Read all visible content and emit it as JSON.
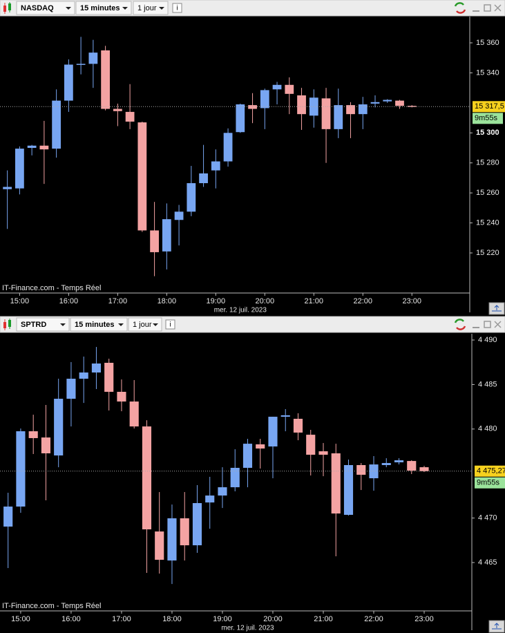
{
  "chart_data": [
    {
      "type": "candlestick",
      "symbol": "NASDAQ",
      "interval": "15 minutes",
      "range": "1 jour",
      "info": "i",
      "watermark": "IT-Finance.com - Temps Réel",
      "date_label": "mer. 12 juil. 2023",
      "last_price": {
        "value": 15317.5,
        "label": "15 317,5"
      },
      "timer": "9m55s",
      "up_color": "#78a6f2",
      "down_color": "#f4a3a3",
      "xlim": [
        14.6,
        24.18
      ],
      "ylim": [
        15193.3,
        15377.5
      ],
      "xticks": [
        {
          "value": 15,
          "label": "15:00"
        },
        {
          "value": 16,
          "label": "16:00"
        },
        {
          "value": 17,
          "label": "17:00"
        },
        {
          "value": 18,
          "label": "18:00"
        },
        {
          "value": 19,
          "label": "19:00"
        },
        {
          "value": 20,
          "label": "20:00"
        },
        {
          "value": 21,
          "label": "21:00"
        },
        {
          "value": 22,
          "label": "22:00"
        },
        {
          "value": 23,
          "label": "23:00"
        }
      ],
      "yticks": [
        {
          "value": 15220,
          "label": "15 220"
        },
        {
          "value": 15240,
          "label": "15 240"
        },
        {
          "value": 15260,
          "label": "15 260"
        },
        {
          "value": 15280,
          "label": "15 280"
        },
        {
          "value": 15300,
          "label": "15 300"
        },
        {
          "value": 15340,
          "label": "15 340"
        },
        {
          "value": 15360,
          "label": "15 360"
        }
      ],
      "x": [
        14.75,
        15,
        15.25,
        15.5,
        15.75,
        16,
        16.25,
        16.5,
        16.75,
        17,
        17.25,
        17.5,
        17.75,
        18,
        18.25,
        18.5,
        18.75,
        19,
        19.25,
        19.5,
        19.75,
        20,
        20.25,
        20.5,
        20.75,
        21,
        21.25,
        21.5,
        21.75,
        22,
        22.25,
        22.5,
        22.75,
        23
      ],
      "open": [
        15262.5,
        15263,
        15290,
        15291.5,
        15289.5,
        15321.5,
        15345.5,
        15346,
        15355,
        15316,
        15314,
        15307,
        15235,
        15221,
        15242,
        15247.5,
        15266.5,
        15275,
        15281,
        15300.5,
        15318.5,
        15316.5,
        15329,
        15332,
        15325,
        15311.5,
        15323,
        15302.5,
        15318.5,
        15312.5,
        15319.5,
        15321,
        15321.5,
        15318
      ],
      "high": [
        15275,
        15291,
        15292,
        15308,
        15329,
        15349,
        15364,
        15362,
        15358,
        15319.5,
        15332.5,
        15307.5,
        15254,
        15253,
        15252,
        15278,
        15292,
        15289,
        15303,
        15319.5,
        15326.5,
        15329.5,
        15334,
        15337,
        15330,
        15329,
        15330,
        15329.5,
        15320.5,
        15324,
        15325,
        15322.5,
        15322,
        15318.5
      ],
      "low": [
        15236,
        15259,
        15285,
        15266,
        15283.5,
        15314,
        15339,
        15330,
        15315,
        15304.5,
        15302.5,
        15234,
        15204.5,
        15209,
        15225,
        15244.5,
        15264,
        15263,
        15277.5,
        15300,
        15306.5,
        15302.5,
        15319,
        15312.5,
        15302,
        15303.5,
        15280,
        15296.5,
        15296.5,
        15302.5,
        15317,
        15320,
        15316,
        15317
      ],
      "close": [
        15264,
        15289.5,
        15291.5,
        15289,
        15321.5,
        15345.5,
        15346,
        15353.5,
        15316,
        15314.5,
        15307.5,
        15235,
        15220.5,
        15242.5,
        15247.5,
        15266.5,
        15273,
        15281,
        15300,
        15319,
        15316,
        15328.5,
        15332,
        15326,
        15312.5,
        15323.5,
        15302.5,
        15318.5,
        15312.5,
        15319,
        15320.5,
        15322,
        15318,
        15317.5
      ]
    },
    {
      "type": "candlestick",
      "symbol": "SPTRD",
      "interval": "15 minutes",
      "range": "1 jour",
      "info": "i",
      "watermark": "IT-Finance.com - Temps Réel",
      "date_label": "mer. 12 juil. 2023",
      "last_price": {
        "value": 4475.27,
        "label": "4 475,27"
      },
      "timer": "9m55s",
      "up_color": "#78a6f2",
      "down_color": "#f4a3a3",
      "xlim": [
        14.59,
        23.945
      ],
      "ylim": [
        4459.57,
        4490.7
      ],
      "xticks": [
        {
          "value": 15,
          "label": "15:00"
        },
        {
          "value": 16,
          "label": "16:00"
        },
        {
          "value": 17,
          "label": "17:00"
        },
        {
          "value": 18,
          "label": "18:00"
        },
        {
          "value": 19,
          "label": "19:00"
        },
        {
          "value": 20,
          "label": "20:00"
        },
        {
          "value": 21,
          "label": "21:00"
        },
        {
          "value": 22,
          "label": "22:00"
        },
        {
          "value": 23,
          "label": "23:00"
        }
      ],
      "yticks": [
        {
          "value": 4465,
          "label": "4 465"
        },
        {
          "value": 4470,
          "label": "4 470"
        },
        {
          "value": 4480,
          "label": "4 480"
        },
        {
          "value": 4485,
          "label": "4 485"
        },
        {
          "value": 4490,
          "label": "4 490"
        }
      ],
      "x": [
        14.75,
        15,
        15.25,
        15.5,
        15.75,
        16,
        16.25,
        16.5,
        16.75,
        17,
        17.25,
        17.5,
        17.75,
        18,
        18.25,
        18.5,
        18.75,
        19,
        19.25,
        19.5,
        19.75,
        20,
        20.25,
        20.5,
        20.75,
        21,
        21.25,
        21.5,
        21.75,
        22,
        22.25,
        22.5,
        22.75,
        23
      ],
      "open": [
        4469.04,
        4471.29,
        4479.75,
        4479.05,
        4477.03,
        4483.4,
        4485.65,
        4486.35,
        4487.44,
        4484.18,
        4483.09,
        4480.29,
        4468.49,
        4465.23,
        4469.97,
        4466.94,
        4471.75,
        4472.53,
        4473.46,
        4475.64,
        4478.28,
        4478.04,
        4481.38,
        4481.15,
        4479.36,
        4477.5,
        4477.27,
        4470.36,
        4475.95,
        4474.47,
        4475.95,
        4476.26,
        4476.41,
        4475.71
      ],
      "high": [
        4472.84,
        4480.06,
        4481.61,
        4482.7,
        4485.65,
        4487.52,
        4488.14,
        4489.22,
        4487.9,
        4485.57,
        4485.5,
        4480.99,
        4472.92,
        4471.52,
        4472.92,
        4473.7,
        4474.63,
        4475.71,
        4477.73,
        4478.9,
        4478.9,
        4481.38,
        4482.24,
        4481.77,
        4479.91,
        4478.43,
        4478.35,
        4476.57,
        4476.18,
        4476.96,
        4476.72,
        4476.72,
        4476.49,
        4475.86
      ],
      "low": [
        4464.38,
        4470.59,
        4477.19,
        4471.99,
        4475.71,
        4480.29,
        4482.93,
        4484.49,
        4482.08,
        4482,
        4480.06,
        4463.84,
        4463.76,
        4462.59,
        4465.23,
        4466.09,
        4468.8,
        4471.13,
        4473,
        4473.46,
        4475.56,
        4474.47,
        4479.75,
        4478.74,
        4474.78,
        4474.7,
        4465.7,
        4470.28,
        4473.15,
        4473.07,
        4475.71,
        4476.02,
        4474.94,
        4475.17
      ],
      "close": [
        4471.29,
        4479.75,
        4478.98,
        4477.27,
        4483.4,
        4485.65,
        4486.35,
        4487.36,
        4484.18,
        4483.09,
        4480.29,
        4468.73,
        4465.31,
        4469.97,
        4466.94,
        4471.68,
        4472.53,
        4473.46,
        4475.64,
        4478.35,
        4477.81,
        4481.38,
        4481.54,
        4479.6,
        4477.11,
        4477.11,
        4470.51,
        4475.95,
        4474.86,
        4476.02,
        4476.18,
        4476.49,
        4475.33,
        4475.27
      ]
    }
  ]
}
